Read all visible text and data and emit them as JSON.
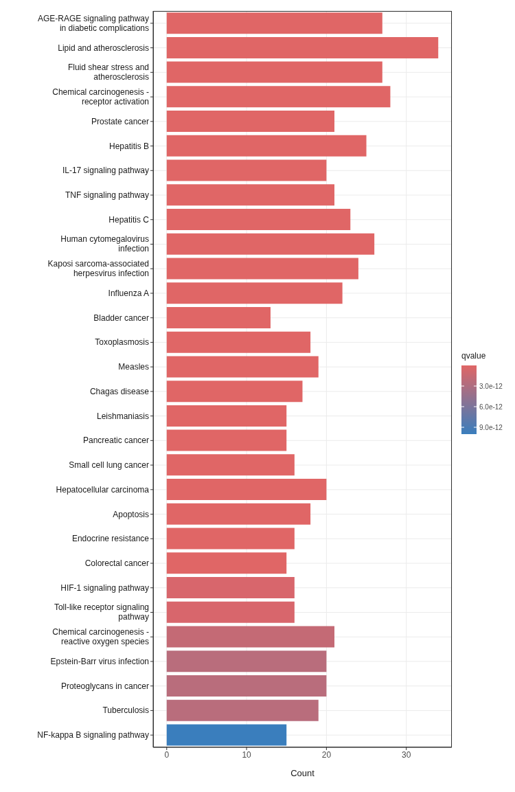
{
  "chart_data": {
    "type": "bar",
    "orientation": "horizontal",
    "xlabel": "Count",
    "clabel": "qvalue",
    "categories": [
      "AGE-RAGE signaling pathway in diabetic complications",
      "Lipid and atherosclerosis",
      "Fluid shear stress and atherosclerosis",
      "Chemical carcinogenesis - receptor activation",
      "Prostate cancer",
      "Hepatitis B",
      "IL-17 signaling pathway",
      "TNF signaling pathway",
      "Hepatitis C",
      "Human cytomegalovirus infection",
      "Kaposi sarcoma-associated herpesvirus infection",
      "Influenza A",
      "Bladder cancer",
      "Toxoplasmosis",
      "Measles",
      "Chagas disease",
      "Leishmaniasis",
      "Pancreatic cancer",
      "Small cell lung cancer",
      "Hepatocellular carcinoma",
      "Apoptosis",
      "Endocrine resistance",
      "Colorectal cancer",
      "HIF-1 signaling pathway",
      "Toll-like receptor signaling pathway",
      "Chemical carcinogenesis - reactive oxygen species",
      "Epstein-Barr virus infection",
      "Proteoglycans in cancer",
      "Tuberculosis",
      "NF-kappa B signaling pathway"
    ],
    "values": [
      27,
      34,
      27,
      28,
      21,
      25,
      20,
      21,
      23,
      26,
      24,
      22,
      13,
      18,
      19,
      17,
      15,
      15,
      16,
      20,
      18,
      16,
      15,
      16,
      16,
      21,
      20,
      20,
      19,
      15
    ],
    "colors": [
      "#e06666",
      "#e06666",
      "#e06666",
      "#e06666",
      "#e06666",
      "#e06666",
      "#e06666",
      "#e06666",
      "#e06666",
      "#e06666",
      "#e06666",
      "#e06666",
      "#e06666",
      "#e06666",
      "#e06666",
      "#e06666",
      "#e06666",
      "#e06666",
      "#e06666",
      "#e06666",
      "#e06666",
      "#e06666",
      "#e06666",
      "#d8666c",
      "#d8666c",
      "#c46a75",
      "#b96d7c",
      "#b96d7c",
      "#b96d7c",
      "#3a7ebd"
    ],
    "xlim": [
      -1.7,
      35.7
    ],
    "xticks": [
      0,
      10,
      20,
      30
    ],
    "grid": true,
    "clim": [
      0,
      1e-11
    ],
    "cticks": [
      {
        "value": 3e-12,
        "label": "3.0e-12"
      },
      {
        "value": 6e-12,
        "label": "6.0e-12"
      },
      {
        "value": 9e-12,
        "label": "9.0e-12"
      }
    ]
  }
}
